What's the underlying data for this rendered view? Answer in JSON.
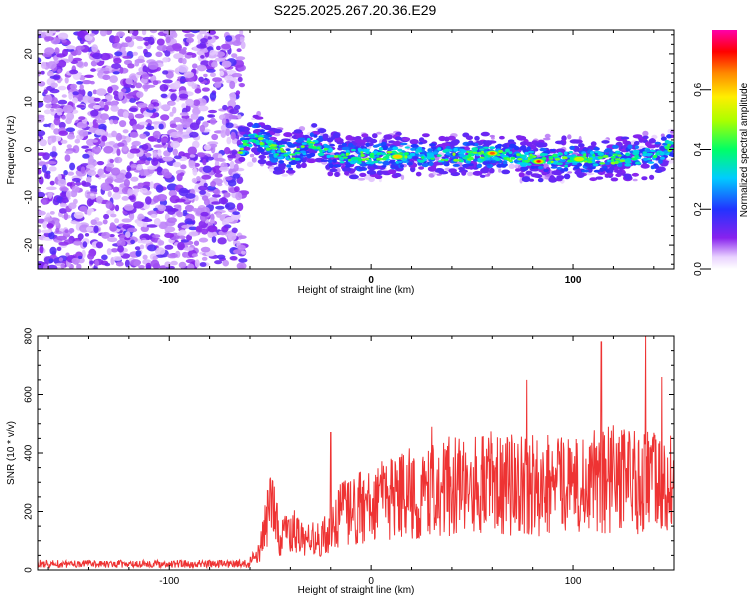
{
  "chart_data": [
    {
      "type": "heatmap",
      "title": "S225.2025.267.20.36.E29",
      "xlabel": "Height of straight line (km)",
      "ylabel": "Frequency (Hz)",
      "xlim": [
        -165,
        150
      ],
      "ylim": [
        -25,
        25
      ],
      "xticks": [
        -100,
        0,
        100
      ],
      "yticks": [
        -20,
        -10,
        0,
        10,
        20
      ],
      "colorbar": {
        "label": "Normalized spectral amplitude",
        "range": [
          0,
          0.8
        ],
        "ticks": [
          0.0,
          0.2,
          0.4,
          0.6
        ]
      },
      "noise_region_x": [
        -165,
        -65
      ],
      "signal_region_x": [
        -65,
        150
      ],
      "ridge": [
        {
          "x": -65,
          "y": 0.0
        },
        {
          "x": -57,
          "y": 3.0
        },
        {
          "x": -50,
          "y": 0.5
        },
        {
          "x": -40,
          "y": -1.5
        },
        {
          "x": -30,
          "y": 1.0
        },
        {
          "x": -20,
          "y": -1.0
        },
        {
          "x": -10,
          "y": -1.5
        },
        {
          "x": 0,
          "y": -1.5
        },
        {
          "x": 20,
          "y": -1.0
        },
        {
          "x": 40,
          "y": -1.5
        },
        {
          "x": 60,
          "y": -1.0
        },
        {
          "x": 80,
          "y": -2.0
        },
        {
          "x": 100,
          "y": -2.0
        },
        {
          "x": 120,
          "y": -2.0
        },
        {
          "x": 140,
          "y": -1.5
        },
        {
          "x": 150,
          "y": 1.0
        }
      ],
      "peaks": [
        {
          "x": 13,
          "y": -1.5,
          "amplitude": 0.6
        },
        {
          "x": 60,
          "y": -0.8,
          "amplitude": 0.65
        },
        {
          "x": 83,
          "y": -2.5,
          "amplitude": 0.8
        },
        {
          "x": 103,
          "y": -2.0,
          "amplitude": 0.55
        }
      ]
    },
    {
      "type": "line",
      "xlabel": "Height of straight line (km)",
      "ylabel": "SNR (10 * v/v)",
      "xlim": [
        -165,
        150
      ],
      "ylim": [
        0,
        800
      ],
      "xticks": [
        -100,
        0,
        100
      ],
      "yticks": [
        0,
        200,
        400,
        600,
        800
      ],
      "series": [
        {
          "name": "SNR",
          "color": "#ee3333",
          "envelope": [
            {
              "x": -165,
              "y": 30
            },
            {
              "x": -60,
              "y": 30
            },
            {
              "x": -55,
              "y": 80
            },
            {
              "x": -50,
              "y": 250
            },
            {
              "x": -45,
              "y": 130
            },
            {
              "x": -40,
              "y": 160
            },
            {
              "x": -30,
              "y": 120
            },
            {
              "x": -20,
              "y": 140
            },
            {
              "x": -15,
              "y": 220
            },
            {
              "x": 0,
              "y": 260
            },
            {
              "x": 20,
              "y": 300
            },
            {
              "x": 40,
              "y": 330
            },
            {
              "x": 60,
              "y": 340
            },
            {
              "x": 80,
              "y": 330
            },
            {
              "x": 100,
              "y": 330
            },
            {
              "x": 120,
              "y": 360
            },
            {
              "x": 150,
              "y": 330
            }
          ],
          "spikes": [
            {
              "x": -48,
              "y": 285
            },
            {
              "x": -20,
              "y": 470
            },
            {
              "x": 30,
              "y": 490
            },
            {
              "x": 77,
              "y": 650
            },
            {
              "x": 114,
              "y": 780
            },
            {
              "x": 136,
              "y": 800
            },
            {
              "x": 144,
              "y": 660
            }
          ]
        }
      ]
    }
  ]
}
